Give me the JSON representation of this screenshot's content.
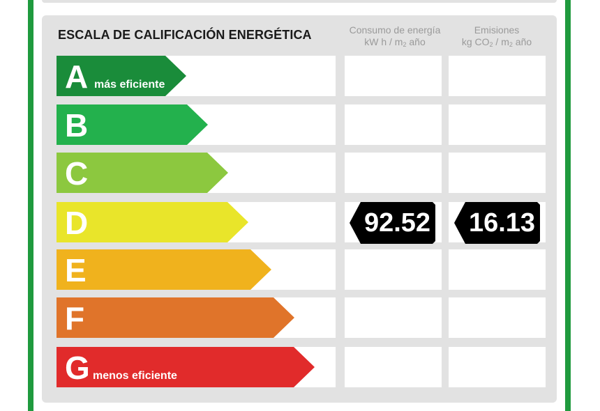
{
  "header": {
    "title": "ESCALA DE CALIFICACIÓN ENERGÉTICA",
    "consumption": {
      "line1": "Consumo de energía",
      "line2_pre": "kW h / m",
      "line2_sub": "2",
      "line2_post": " año"
    },
    "emissions": {
      "line1": "Emisiones",
      "line2_pre": "kg CO",
      "line2_sub1": "2",
      "line2_mid": " / m",
      "line2_sub2": "2",
      "line2_post": " año"
    }
  },
  "ratings": [
    {
      "letter": "A",
      "note": "más eficiente",
      "color": "#1a8c3a"
    },
    {
      "letter": "B",
      "note": "",
      "color": "#23b14d"
    },
    {
      "letter": "C",
      "note": "",
      "color": "#8cc83f"
    },
    {
      "letter": "D",
      "note": "",
      "color": "#e9e52a"
    },
    {
      "letter": "E",
      "note": "",
      "color": "#f0b21d"
    },
    {
      "letter": "F",
      "note": "",
      "color": "#e0742a"
    },
    {
      "letter": "G",
      "note": "menos eficiente",
      "color": "#e12b2b"
    }
  ],
  "current_rating": "D",
  "consumption_value": "92.52",
  "emissions_value": "16.13",
  "colors": {
    "frame": "#1f9a3e",
    "panel": "#e2e2e2",
    "tag": "#000000"
  }
}
